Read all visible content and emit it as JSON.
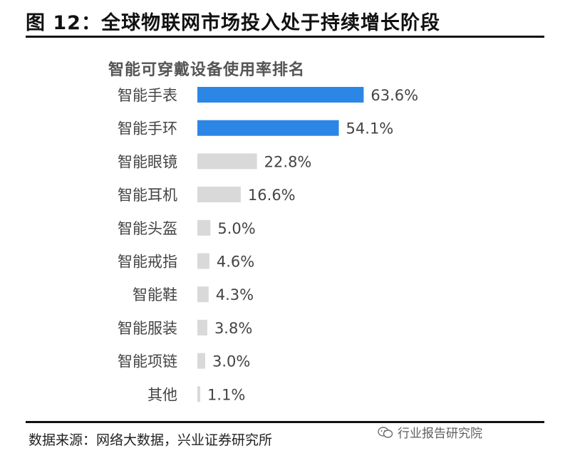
{
  "figure_title": "图 12：全球物联网市场投入处于持续增长阶段",
  "source": "数据来源：网络大数据，兴业证券研究所",
  "watermark": "行业报告研究院",
  "watermark_icon": "wechat-icon",
  "colors": {
    "highlight": "#2b86e6",
    "normal": "#d9d9d9",
    "label": "#444444"
  },
  "chart_data": {
    "type": "bar",
    "orientation": "horizontal",
    "title": "智能可穿戴设备使用率排名",
    "categories": [
      "智能手表",
      "智能手环",
      "智能眼镜",
      "智能耳机",
      "智能头盔",
      "智能戒指",
      "智能鞋",
      "智能服装",
      "智能项链",
      "其他"
    ],
    "values": [
      63.6,
      54.1,
      22.8,
      16.6,
      5.0,
      4.6,
      4.3,
      3.8,
      3.0,
      1.1
    ],
    "value_labels": [
      "63.6%",
      "54.1%",
      "22.8%",
      "16.6%",
      "5.0%",
      "4.6%",
      "4.3%",
      "3.8%",
      "3.0%",
      "1.1%"
    ],
    "highlighted": [
      true,
      true,
      false,
      false,
      false,
      false,
      false,
      false,
      false,
      false
    ],
    "xlabel": "",
    "ylabel": "",
    "xlim": [
      0,
      70
    ],
    "grid": false,
    "legend": "none"
  }
}
